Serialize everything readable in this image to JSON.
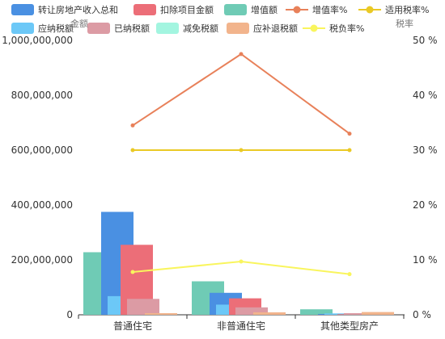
{
  "chart_data": {
    "type": "bar",
    "categories": [
      "普通住宅",
      "非普通住宅",
      "其他类型房产"
    ],
    "series": [
      {
        "name": "转让房地产收入总和",
        "type": "bar",
        "axis": "left",
        "color": "#4a90e2",
        "values": [
          375000000,
          80000000,
          3000000
        ]
      },
      {
        "name": "扣除项目金额",
        "type": "bar",
        "axis": "left",
        "color": "#ec6e78",
        "values": [
          255000000,
          60000000,
          2000000
        ]
      },
      {
        "name": "增值额",
        "type": "bar",
        "axis": "left",
        "color": "#6fcbb5",
        "values": [
          228000000,
          122000000,
          20000000
        ]
      },
      {
        "name": "增值率%",
        "type": "line",
        "axis": "right",
        "color": "#e8815a",
        "values": [
          34.5,
          47.5,
          33.0
        ]
      },
      {
        "name": "适用税率%",
        "type": "line",
        "axis": "right",
        "color": "#eac925",
        "values": [
          30,
          30,
          30
        ]
      },
      {
        "name": "应纳税额",
        "type": "bar",
        "axis": "left",
        "color": "#6cc8f7",
        "values": [
          68000000,
          37000000,
          5000000
        ]
      },
      {
        "name": "已纳税额",
        "type": "bar",
        "axis": "left",
        "color": "#dc9ba4",
        "values": [
          58000000,
          27000000,
          6000000
        ]
      },
      {
        "name": "减免税额",
        "type": "bar",
        "axis": "left",
        "color": "#a3f5e0",
        "values": [
          0,
          0,
          0
        ]
      },
      {
        "name": "应补退税额",
        "type": "bar",
        "axis": "left",
        "color": "#f2b48c",
        "values": [
          6000000,
          9000000,
          10000000
        ]
      },
      {
        "name": "税负率%",
        "type": "line",
        "axis": "right",
        "color": "#f9f55d",
        "values": [
          7.8,
          9.7,
          7.4
        ]
      }
    ],
    "bar_render_order": [
      "增值额",
      "转让房地产收入总和",
      "应纳税额",
      "扣除项目金额",
      "已纳税额",
      "减免税额",
      "应补退税额"
    ],
    "ylabel_left": "金额",
    "ylabel_right": "税率",
    "ylim_left": [
      0,
      1000000000
    ],
    "ylim_right": [
      0,
      50
    ],
    "yticks_left": [
      0,
      200000000,
      400000000,
      600000000,
      800000000,
      1000000000
    ],
    "yticks_left_labels": [
      "0",
      "200,000,000",
      "400,000,000",
      "600,000,000",
      "800,000,000",
      "1,000,000,000"
    ],
    "yticks_right": [
      0,
      10,
      20,
      30,
      40,
      50
    ],
    "yticks_right_labels": [
      "0 %",
      "10 %",
      "20 %",
      "30 %",
      "40 %",
      "50 %"
    ],
    "grid": false,
    "legend_position": "top"
  }
}
